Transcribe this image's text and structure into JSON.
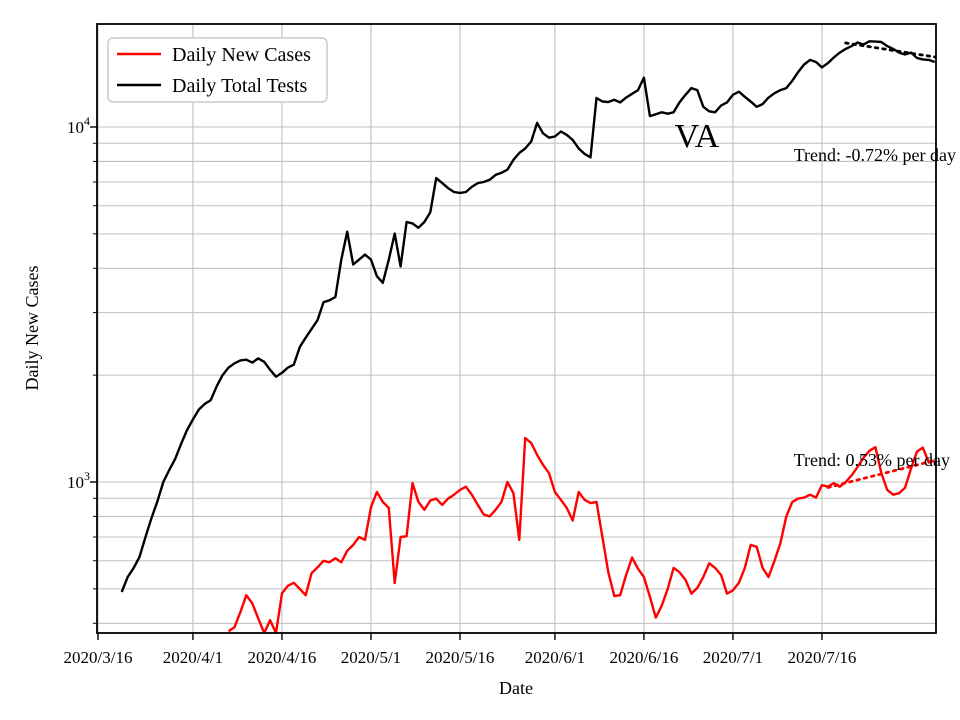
{
  "figure": {
    "background": "#ffffff",
    "grid_color": "#c0c0c0",
    "spine_color": "#000000"
  },
  "legend": {
    "items": [
      {
        "label": "Daily New Cases",
        "color": "#ff0000"
      },
      {
        "label": "Daily Total Tests",
        "color": "#000000"
      }
    ]
  },
  "annotations": {
    "state": "VA",
    "tests_trend": "Trend: -0.72% per day",
    "cases_trend": "Trend: 0.53% per day"
  },
  "axes": {
    "xlabel": "Date",
    "ylabel": "Daily New Cases",
    "y_scale": "log",
    "x_ticks": [
      {
        "label": "2020/3/16",
        "day": 0
      },
      {
        "label": "2020/4/1",
        "day": 16
      },
      {
        "label": "2020/4/16",
        "day": 31
      },
      {
        "label": "2020/5/1",
        "day": 46
      },
      {
        "label": "2020/5/16",
        "day": 61
      },
      {
        "label": "2020/6/1",
        "day": 77
      },
      {
        "label": "2020/6/16",
        "day": 92
      },
      {
        "label": "2020/7/1",
        "day": 107
      },
      {
        "label": "2020/7/16",
        "day": 122
      }
    ],
    "y_major_ticks": [
      {
        "base": "10",
        "exp": "3",
        "value": 1000
      },
      {
        "base": "10",
        "exp": "4",
        "value": 10000
      }
    ],
    "y_minor_ticks": [
      400,
      500,
      600,
      700,
      800,
      900,
      2000,
      3000,
      4000,
      5000,
      6000,
      7000,
      8000,
      9000
    ]
  },
  "chart_data": {
    "type": "line",
    "title": "VA",
    "xlabel": "Date",
    "ylabel": "Daily New Cases",
    "y_scale": "log",
    "ylim": [
      375,
      19500
    ],
    "x_range": [
      "2020/3/16",
      "2020/8/4"
    ],
    "grid": true,
    "legend_position": "upper left",
    "series": [
      {
        "name": "Daily Total Tests",
        "color": "#000000",
        "style": "solid",
        "start_date": "2020/3/20",
        "start_day_offset": 4,
        "values": [
          490,
          540,
          572,
          615,
          700,
          790,
          880,
          1000,
          1080,
          1160,
          1280,
          1400,
          1500,
          1600,
          1660,
          1700,
          1860,
          2000,
          2100,
          2160,
          2200,
          2210,
          2170,
          2230,
          2180,
          2070,
          1980,
          2030,
          2100,
          2140,
          2400,
          2550,
          2700,
          2860,
          3210,
          3250,
          3320,
          4230,
          5070,
          4100,
          4230,
          4370,
          4230,
          3800,
          3640,
          4230,
          5010,
          4050,
          5400,
          5350,
          5200,
          5400,
          5750,
          7180,
          6950,
          6730,
          6560,
          6520,
          6560,
          6780,
          6950,
          7000,
          7100,
          7330,
          7430,
          7580,
          8080,
          8450,
          8700,
          9100,
          10270,
          9600,
          9330,
          9400,
          9710,
          9500,
          9200,
          8700,
          8400,
          8210,
          12070,
          11800,
          11760,
          11930,
          11730,
          12100,
          12400,
          12700,
          13770,
          10730,
          10860,
          11000,
          10900,
          11000,
          11730,
          12320,
          12870,
          12700,
          11400,
          11070,
          11000,
          11500,
          11730,
          12320,
          12570,
          12160,
          11800,
          11400,
          11600,
          12100,
          12450,
          12700,
          12870,
          13500,
          14290,
          15000,
          15450,
          15240,
          14720,
          15140,
          15700,
          16200,
          16600,
          16900,
          17300,
          17070,
          17430,
          17400,
          17350,
          16900,
          16600,
          16200,
          16000,
          16200,
          15650,
          15500,
          15450,
          15240
        ]
      },
      {
        "name": "Daily New Cases",
        "color": "#ff0000",
        "style": "solid",
        "start_date": "2020/4/7",
        "start_day_offset": 22,
        "values": [
          380,
          390,
          430,
          480,
          455,
          413,
          372,
          408,
          375,
          486,
          510,
          520,
          500,
          480,
          554,
          575,
          600,
          594,
          610,
          594,
          640,
          665,
          700,
          687,
          850,
          937,
          879,
          845,
          519,
          700,
          703,
          993,
          879,
          835,
          887,
          898,
          862,
          898,
          921,
          950,
          970,
          921,
          862,
          810,
          800,
          835,
          879,
          1000,
          930,
          687,
          1330,
          1288,
          1192,
          1118,
          1059,
          937,
          891,
          845,
          779,
          937,
          891,
          872,
          879,
          700,
          557,
          477,
          480,
          547,
          613,
          570,
          540,
          475,
          415,
          448,
          500,
          573,
          557,
          530,
          485,
          503,
          540,
          590,
          573,
          547,
          485,
          495,
          520,
          573,
          665,
          657,
          573,
          540,
          600,
          673,
          800,
          879,
          898,
          904,
          921,
          904,
          980,
          970,
          993,
          970,
          1000,
          1044,
          1103,
          1170,
          1224,
          1253,
          1060,
          950,
          921,
          930,
          963,
          1090,
          1218,
          1250,
          1135,
          1150
        ]
      }
    ],
    "trend_lines": [
      {
        "name": "tests-trend",
        "label": "Trend: -0.72% per day",
        "color": "#000000",
        "style": "dotted",
        "start_date": "2020/7/20",
        "start_day_offset": 126,
        "start_value": 17250,
        "end_date": "2020/8/4",
        "end_day_offset": 141,
        "end_value": 15750
      },
      {
        "name": "cases-trend",
        "label": "Trend: 0.53% per day",
        "color": "#ff0000",
        "style": "dotted",
        "start_date": "2020/7/17",
        "start_day_offset": 123,
        "start_value": 965,
        "end_date": "2020/8/4",
        "end_day_offset": 141,
        "end_value": 1150
      }
    ]
  }
}
